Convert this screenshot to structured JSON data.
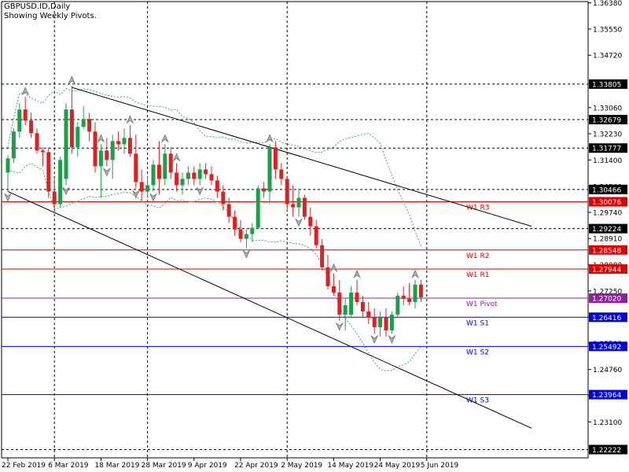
{
  "chart_data": {
    "type": "candlestick",
    "symbol_title": "GBPUSD.ID,Daily",
    "subtitle": "Showing Weekly Pivots.",
    "ylim": [
      1.2196,
      1.3642
    ],
    "price_ticks": [
      "1.36380",
      "1.35550",
      "1.34720",
      "1.33060",
      "1.32230",
      "1.31400",
      "1.30560",
      "1.29740",
      "1.28910",
      "1.28080",
      "1.27250",
      "1.26420",
      "1.25590",
      "1.24760",
      "1.23930",
      "1.23100"
    ],
    "marked_levels": [
      {
        "label": "1.33805",
        "value": 1.33805,
        "style": "grid"
      },
      {
        "label": "1.32679",
        "value": 1.32679,
        "style": "grid"
      },
      {
        "label": "1.31777",
        "value": 1.31777,
        "style": "grid"
      },
      {
        "label": "1.30466",
        "value": 1.30466,
        "style": "grid"
      },
      {
        "label": "1.29224",
        "value": 1.29224,
        "style": "grid"
      },
      {
        "label": "1.22222",
        "value": 1.22222,
        "style": "grid"
      }
    ],
    "pivots": [
      {
        "name": "W1 R3",
        "label": "1.30076",
        "value": 1.30076,
        "color": "#e00000"
      },
      {
        "name": "W1 R2",
        "label": "1.28548",
        "value": 1.28548,
        "color": "#e00000"
      },
      {
        "name": "W1 R1",
        "label": "1.27944",
        "value": 1.27944,
        "color": "#e00000"
      },
      {
        "name": "W1 Pivot",
        "label": "1.27020",
        "value": 1.2702,
        "color": "#9020a0"
      },
      {
        "name": "W1 S1",
        "label": "1.26416",
        "value": 1.26416,
        "color": "#0000e0"
      },
      {
        "name": "W1 S2",
        "label": "1.25492",
        "value": 1.25492,
        "color": "#0000e0"
      },
      {
        "name": "W1 S3",
        "label": "1.23964",
        "value": 1.23964,
        "color": "#0000e0"
      }
    ],
    "date_labels": [
      {
        "text": "22 Feb 2019",
        "bar": 0
      },
      {
        "text": "6 Mar 2019",
        "bar": 8
      },
      {
        "text": "18 Mar 2019",
        "bar": 16
      },
      {
        "text": "28 Mar 2019",
        "bar": 24
      },
      {
        "text": "9 Apr 2019",
        "bar": 32
      },
      {
        "text": "22 Apr 2019",
        "bar": 40
      },
      {
        "text": "2 May 2019",
        "bar": 48
      },
      {
        "text": "14 May 2019",
        "bar": 56
      },
      {
        "text": "24 May 2019",
        "bar": 64
      },
      {
        "text": "5 Jun 2019",
        "bar": 72
      }
    ],
    "vertical_grid_bars": [
      8,
      24,
      48,
      72
    ],
    "candles": [
      {
        "o": 1.31,
        "h": 1.3155,
        "l": 1.304,
        "c": 1.3145
      },
      {
        "o": 1.3145,
        "h": 1.324,
        "l": 1.313,
        "c": 1.323
      },
      {
        "o": 1.323,
        "h": 1.332,
        "l": 1.321,
        "c": 1.33
      },
      {
        "o": 1.33,
        "h": 1.334,
        "l": 1.325,
        "c": 1.3265
      },
      {
        "o": 1.3265,
        "h": 1.329,
        "l": 1.321,
        "c": 1.3225
      },
      {
        "o": 1.3225,
        "h": 1.324,
        "l": 1.316,
        "c": 1.317
      },
      {
        "o": 1.317,
        "h": 1.318,
        "l": 1.312,
        "c": 1.3165
      },
      {
        "o": 1.3165,
        "h": 1.318,
        "l": 1.302,
        "c": 1.304
      },
      {
        "o": 1.304,
        "h": 1.308,
        "l": 1.298,
        "c": 1.3
      },
      {
        "o": 1.3,
        "h": 1.315,
        "l": 1.299,
        "c": 1.314
      },
      {
        "o": 1.308,
        "h": 1.332,
        "l": 1.306,
        "c": 1.33
      },
      {
        "o": 1.33,
        "h": 1.3375,
        "l": 1.316,
        "c": 1.318
      },
      {
        "o": 1.318,
        "h": 1.326,
        "l": 1.315,
        "c": 1.3245
      },
      {
        "o": 1.3245,
        "h": 1.331,
        "l": 1.324,
        "c": 1.327
      },
      {
        "o": 1.327,
        "h": 1.329,
        "l": 1.32,
        "c": 1.323
      },
      {
        "o": 1.323,
        "h": 1.326,
        "l": 1.31,
        "c": 1.312
      },
      {
        "o": 1.312,
        "h": 1.319,
        "l": 1.302,
        "c": 1.317
      },
      {
        "o": 1.317,
        "h": 1.321,
        "l": 1.312,
        "c": 1.314
      },
      {
        "o": 1.314,
        "h": 1.322,
        "l": 1.308,
        "c": 1.32
      },
      {
        "o": 1.32,
        "h": 1.323,
        "l": 1.317,
        "c": 1.319
      },
      {
        "o": 1.319,
        "h": 1.324,
        "l": 1.316,
        "c": 1.321
      },
      {
        "o": 1.321,
        "h": 1.325,
        "l": 1.315,
        "c": 1.316
      },
      {
        "o": 1.316,
        "h": 1.322,
        "l": 1.305,
        "c": 1.307
      },
      {
        "o": 1.307,
        "h": 1.311,
        "l": 1.301,
        "c": 1.304
      },
      {
        "o": 1.304,
        "h": 1.309,
        "l": 1.302,
        "c": 1.306
      },
      {
        "o": 1.306,
        "h": 1.314,
        "l": 1.304,
        "c": 1.3125
      },
      {
        "o": 1.3125,
        "h": 1.32,
        "l": 1.303,
        "c": 1.308
      },
      {
        "o": 1.308,
        "h": 1.319,
        "l": 1.306,
        "c": 1.316
      },
      {
        "o": 1.316,
        "h": 1.318,
        "l": 1.308,
        "c": 1.31
      },
      {
        "o": 1.31,
        "h": 1.313,
        "l": 1.304,
        "c": 1.306
      },
      {
        "o": 1.306,
        "h": 1.31,
        "l": 1.303,
        "c": 1.308
      },
      {
        "o": 1.308,
        "h": 1.312,
        "l": 1.306,
        "c": 1.31
      },
      {
        "o": 1.31,
        "h": 1.312,
        "l": 1.306,
        "c": 1.308
      },
      {
        "o": 1.308,
        "h": 1.313,
        "l": 1.306,
        "c": 1.311
      },
      {
        "o": 1.311,
        "h": 1.313,
        "l": 1.308,
        "c": 1.3095
      },
      {
        "o": 1.3095,
        "h": 1.312,
        "l": 1.306,
        "c": 1.3075
      },
      {
        "o": 1.3075,
        "h": 1.309,
        "l": 1.302,
        "c": 1.304
      },
      {
        "o": 1.304,
        "h": 1.306,
        "l": 1.298,
        "c": 1.3
      },
      {
        "o": 1.3,
        "h": 1.302,
        "l": 1.294,
        "c": 1.296
      },
      {
        "o": 1.296,
        "h": 1.298,
        "l": 1.29,
        "c": 1.292
      },
      {
        "o": 1.292,
        "h": 1.295,
        "l": 1.288,
        "c": 1.289
      },
      {
        "o": 1.289,
        "h": 1.292,
        "l": 1.286,
        "c": 1.2905
      },
      {
        "o": 1.2905,
        "h": 1.294,
        "l": 1.288,
        "c": 1.2925
      },
      {
        "o": 1.2925,
        "h": 1.306,
        "l": 1.292,
        "c": 1.305
      },
      {
        "o": 1.305,
        "h": 1.307,
        "l": 1.302,
        "c": 1.304
      },
      {
        "o": 1.304,
        "h": 1.319,
        "l": 1.3,
        "c": 1.318
      },
      {
        "o": 1.318,
        "h": 1.32,
        "l": 1.308,
        "c": 1.311
      },
      {
        "o": 1.311,
        "h": 1.313,
        "l": 1.306,
        "c": 1.308
      },
      {
        "o": 1.308,
        "h": 1.309,
        "l": 1.298,
        "c": 1.3
      },
      {
        "o": 1.3,
        "h": 1.306,
        "l": 1.296,
        "c": 1.299
      },
      {
        "o": 1.299,
        "h": 1.305,
        "l": 1.296,
        "c": 1.302
      },
      {
        "o": 1.302,
        "h": 1.303,
        "l": 1.295,
        "c": 1.296
      },
      {
        "o": 1.296,
        "h": 1.299,
        "l": 1.29,
        "c": 1.293
      },
      {
        "o": 1.293,
        "h": 1.295,
        "l": 1.286,
        "c": 1.287
      },
      {
        "o": 1.287,
        "h": 1.289,
        "l": 1.279,
        "c": 1.28
      },
      {
        "o": 1.28,
        "h": 1.284,
        "l": 1.273,
        "c": 1.274
      },
      {
        "o": 1.274,
        "h": 1.278,
        "l": 1.271,
        "c": 1.272
      },
      {
        "o": 1.272,
        "h": 1.276,
        "l": 1.263,
        "c": 1.265
      },
      {
        "o": 1.265,
        "h": 1.27,
        "l": 1.26,
        "c": 1.268
      },
      {
        "o": 1.265,
        "h": 1.274,
        "l": 1.264,
        "c": 1.272
      },
      {
        "o": 1.272,
        "h": 1.276,
        "l": 1.268,
        "c": 1.269
      },
      {
        "o": 1.269,
        "h": 1.271,
        "l": 1.264,
        "c": 1.266
      },
      {
        "o": 1.266,
        "h": 1.269,
        "l": 1.262,
        "c": 1.264
      },
      {
        "o": 1.264,
        "h": 1.267,
        "l": 1.259,
        "c": 1.261
      },
      {
        "o": 1.261,
        "h": 1.266,
        "l": 1.258,
        "c": 1.264
      },
      {
        "o": 1.264,
        "h": 1.267,
        "l": 1.258,
        "c": 1.26
      },
      {
        "o": 1.26,
        "h": 1.266,
        "l": 1.259,
        "c": 1.265
      },
      {
        "o": 1.265,
        "h": 1.272,
        "l": 1.264,
        "c": 1.271
      },
      {
        "o": 1.271,
        "h": 1.274,
        "l": 1.268,
        "c": 1.27
      },
      {
        "o": 1.27,
        "h": 1.275,
        "l": 1.268,
        "c": 1.269
      },
      {
        "o": 1.269,
        "h": 1.276,
        "l": 1.267,
        "c": 1.2745
      },
      {
        "o": 1.2745,
        "h": 1.276,
        "l": 1.269,
        "c": 1.2705
      }
    ],
    "fractals_up": [
      3,
      11,
      16,
      21,
      27,
      29,
      45,
      56,
      60,
      70
    ],
    "fractals_down": [
      0,
      10,
      17,
      22,
      25,
      33,
      41,
      50,
      57,
      63,
      66
    ],
    "channel_upper": {
      "from": {
        "bar": 11,
        "price": 1.337
      },
      "to": {
        "bar": 90,
        "price": 1.293
      }
    },
    "channel_lower": {
      "from": {
        "bar": 0,
        "price": 1.304
      },
      "to": {
        "bar": 90,
        "price": 1.229
      }
    }
  }
}
